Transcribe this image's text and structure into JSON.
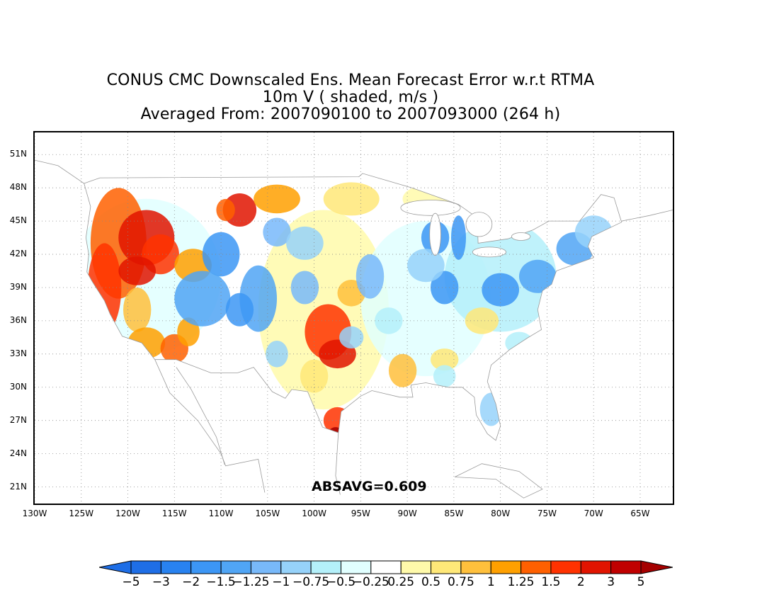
{
  "title": {
    "line1": "CONUS CMC Downscaled Ens. Mean Forecast Error w.r.t RTMA",
    "line2": "10m V ( shaded, m/s )",
    "line3": "Averaged From: 2007090100 to 2007093000 (264 h)"
  },
  "map": {
    "lat_labels": [
      "51N",
      "48N",
      "45N",
      "42N",
      "39N",
      "36N",
      "33N",
      "30N",
      "27N",
      "24N",
      "21N"
    ],
    "lon_labels": [
      "130W",
      "125W",
      "120W",
      "115W",
      "110W",
      "105W",
      "100W",
      "95W",
      "90W",
      "85W",
      "80W",
      "75W",
      "70W",
      "65W"
    ],
    "lat_values": [
      51,
      48,
      45,
      42,
      39,
      36,
      33,
      30,
      27,
      24,
      21
    ],
    "lon_values": [
      -130,
      -125,
      -120,
      -115,
      -110,
      -105,
      -100,
      -95,
      -90,
      -85,
      -80,
      -75,
      -70,
      -65
    ],
    "lat_range": [
      19.5,
      53
    ],
    "lon_range": [
      -130,
      -61.5
    ],
    "grid": true,
    "absavg": "ABSAVG=0.609"
  },
  "colorbar": {
    "labels": [
      "−5",
      "−3",
      "−2",
      "−1.5",
      "−1.25",
      "−1",
      "−0.75",
      "−0.5",
      "−0.25",
      "0.25",
      "0.5",
      "0.75",
      "1",
      "1.25",
      "1.5",
      "2",
      "3",
      "5"
    ],
    "colors": [
      "#1e6ee6",
      "#1e6ee6",
      "#2882f0",
      "#3c96f5",
      "#50a5f5",
      "#78b9fa",
      "#96d2fa",
      "#b4f0fa",
      "#e1ffff",
      "#ffffff",
      "#fffaaa",
      "#ffe878",
      "#ffc03c",
      "#ffa000",
      "#ff6000",
      "#ff3200",
      "#e11400",
      "#c00000",
      "#a50000"
    ]
  }
}
